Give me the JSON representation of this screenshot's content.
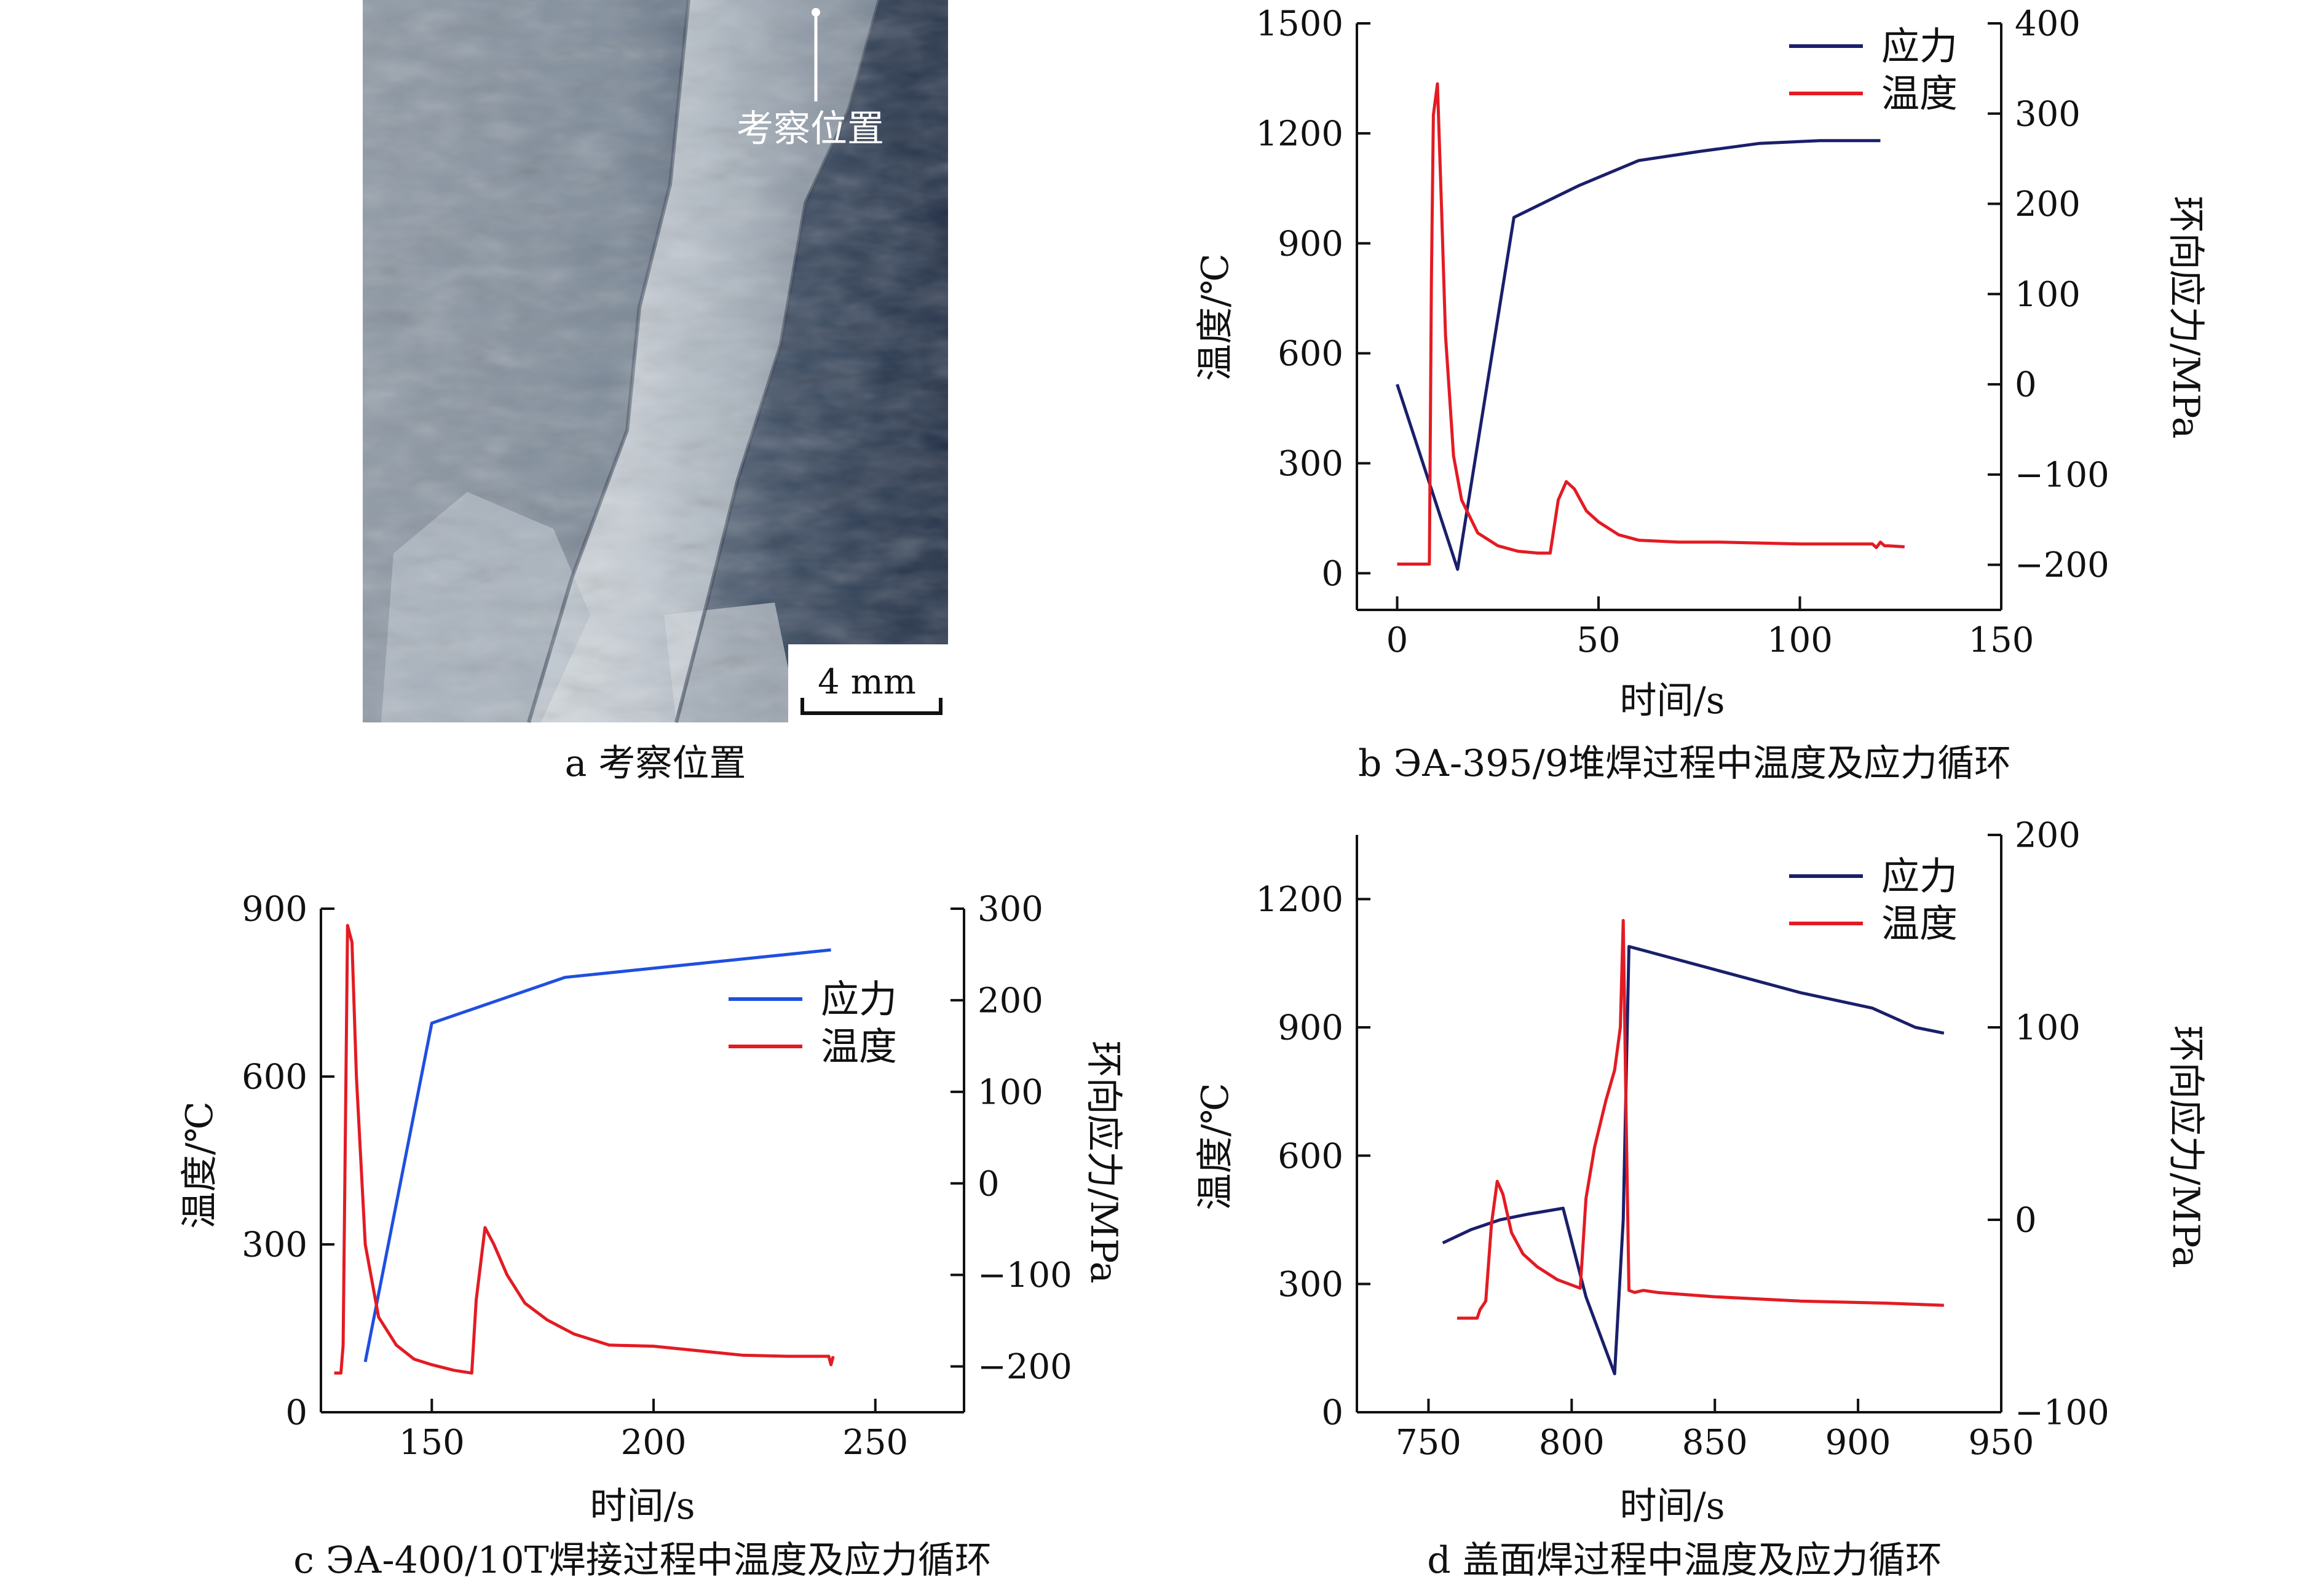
{
  "panel_a": {
    "label": "考察位置",
    "scalebar": "4 mm",
    "caption": "a 考察位置"
  },
  "colors": {
    "stress_dark": "#1a1f6b",
    "stress_blue": "#1f4fe0",
    "temperature": "#e31b23",
    "axis": "#111111"
  },
  "chart_data": [
    {
      "panel": "b",
      "type": "line",
      "caption": "b  ЭА-395/9堆焊过程中温度及应力循环",
      "xlabel": "时间/s",
      "ylabel_left": "温度/℃",
      "ylabel_right": "环向应力/MPa",
      "xlim": [
        -10,
        150
      ],
      "ylim_left": [
        -100,
        1500
      ],
      "ylim_right": [
        -250,
        400
      ],
      "xticks": [
        0,
        50,
        100,
        150
      ],
      "yticks_left": [
        0,
        300,
        600,
        900,
        1200,
        1500
      ],
      "yticks_right": [
        -200,
        -100,
        0,
        100,
        200,
        300,
        400
      ],
      "legend_position": "top-right",
      "series": [
        {
          "name": "应力",
          "axis": "right",
          "color": "#1a1f6b",
          "x": [
            0,
            15,
            29,
            45,
            60,
            75,
            90,
            105,
            120
          ],
          "y": [
            0,
            -205,
            185,
            220,
            248,
            258,
            267,
            270,
            270
          ]
        },
        {
          "name": "温度",
          "axis": "left",
          "color": "#e31b23",
          "x": [
            0,
            8,
            8.5,
            9,
            10,
            11,
            12,
            14,
            16,
            20,
            25,
            30,
            35,
            38,
            40,
            42,
            44,
            47,
            50,
            55,
            60,
            70,
            80,
            100,
            118,
            119,
            120,
            121,
            122,
            126
          ],
          "y": [
            25,
            25,
            800,
            1250,
            1335,
            1000,
            650,
            320,
            200,
            110,
            75,
            60,
            55,
            55,
            200,
            250,
            230,
            170,
            140,
            105,
            90,
            85,
            85,
            80,
            80,
            70,
            85,
            75,
            75,
            72
          ]
        }
      ]
    },
    {
      "panel": "c",
      "type": "line",
      "caption": "c  ЭА-400/10T焊接过程中温度及应力循环",
      "xlabel": "时间/s",
      "ylabel_left": "温度/℃",
      "ylabel_right": "环向应力/MPa",
      "xlim": [
        125,
        270
      ],
      "ylim_left": [
        0,
        900
      ],
      "ylim_right": [
        -250,
        300
      ],
      "xticks": [
        150,
        200,
        250
      ],
      "yticks_left": [
        0,
        300,
        600,
        900
      ],
      "yticks_right": [
        -200,
        -100,
        0,
        100,
        200,
        300
      ],
      "legend_position": "top-right",
      "series": [
        {
          "name": "应力",
          "axis": "right",
          "color": "#1f4fe0",
          "x": [
            135,
            150,
            180,
            240
          ],
          "y": [
            -195,
            175,
            225,
            255
          ]
        },
        {
          "name": "温度",
          "axis": "left",
          "color": "#e31b23",
          "x": [
            128,
            129.5,
            130,
            131,
            132,
            133,
            135,
            138,
            142,
            146,
            150,
            155,
            159,
            160,
            162,
            164,
            167,
            171,
            176,
            182,
            190,
            200,
            210,
            220,
            230,
            239.5,
            240,
            240.5
          ],
          "y": [
            70,
            70,
            120,
            870,
            840,
            600,
            300,
            170,
            120,
            95,
            85,
            75,
            70,
            200,
            330,
            300,
            245,
            195,
            165,
            140,
            120,
            118,
            110,
            102,
            100,
            100,
            85,
            100
          ]
        }
      ]
    },
    {
      "panel": "d",
      "type": "line",
      "caption": "d  盖面焊过程中温度及应力循环",
      "xlabel": "时间/s",
      "ylabel_left": "温度/℃",
      "ylabel_right": "环向应力/MPa",
      "xlim": [
        725,
        950
      ],
      "ylim_left": [
        0,
        1350
      ],
      "ylim_right": [
        -100,
        200
      ],
      "xticks": [
        750,
        800,
        850,
        900,
        950
      ],
      "yticks_left": [
        0,
        300,
        600,
        900,
        1200
      ],
      "yticks_right": [
        -100,
        0,
        100,
        200
      ],
      "legend_position": "top-right",
      "series": [
        {
          "name": "应力",
          "axis": "right",
          "color": "#1a1f6b",
          "x": [
            755,
            765,
            775,
            785,
            797,
            805,
            810,
            815,
            818,
            820,
            850,
            880,
            905,
            920,
            930
          ],
          "y": [
            -12,
            -5,
            0,
            3,
            6,
            -40,
            -60,
            -80,
            0,
            142,
            130,
            118,
            110,
            100,
            97
          ]
        },
        {
          "name": "温度",
          "axis": "left",
          "color": "#e31b23",
          "x": [
            760,
            767,
            768,
            770,
            772,
            774,
            776,
            779,
            783,
            788,
            795,
            801,
            803,
            805,
            808,
            812,
            815,
            817,
            818,
            819,
            820,
            822,
            825,
            830,
            850,
            880,
            910,
            930
          ],
          "y": [
            220,
            220,
            240,
            260,
            440,
            540,
            510,
            420,
            370,
            340,
            310,
            295,
            290,
            500,
            620,
            730,
            800,
            900,
            1150,
            700,
            285,
            280,
            285,
            280,
            270,
            260,
            255,
            250
          ]
        }
      ]
    }
  ]
}
